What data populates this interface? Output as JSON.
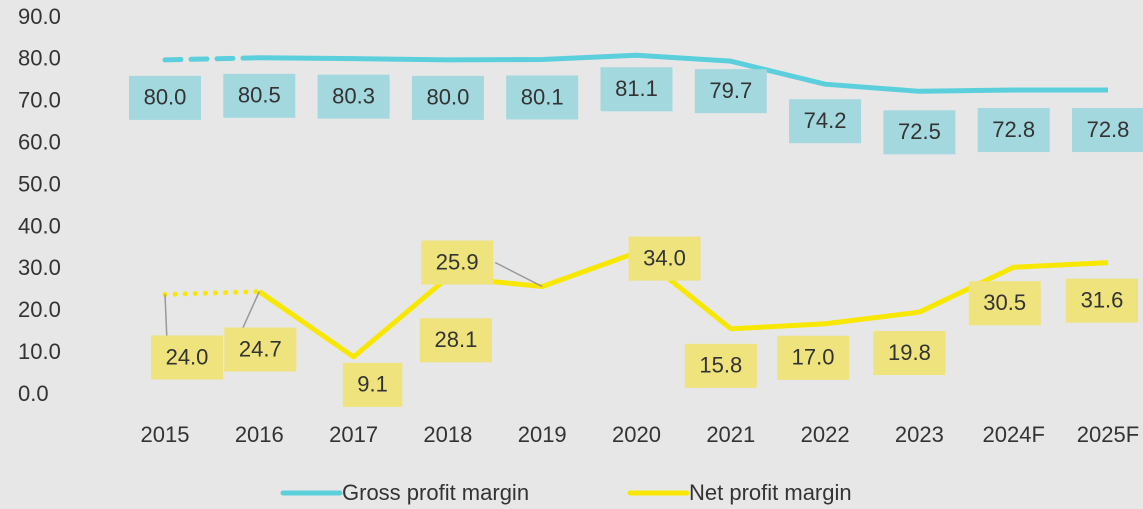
{
  "chart_data": {
    "type": "line",
    "categories": [
      "2015",
      "2016",
      "2017",
      "2018",
      "2019",
      "2020",
      "2021",
      "2022",
      "2023",
      "2024F",
      "2025F"
    ],
    "series": [
      {
        "name": "Gross profit margin",
        "color": "#5ccfdd",
        "label_color": "#a3d8df",
        "first_segment_style": "dashed",
        "values": [
          80.0,
          80.5,
          80.3,
          80.0,
          80.1,
          81.1,
          79.7,
          74.2,
          72.5,
          72.8,
          72.8
        ],
        "value_labels": [
          "80.0",
          "80.5",
          "80.3",
          "80.0",
          "80.1",
          "81.1",
          "79.7",
          "74.2",
          "72.5",
          "72.8",
          "72.8"
        ]
      },
      {
        "name": "Net profit margin",
        "color": "#f8e800",
        "label_color": "#eee37c",
        "first_segment_style": "dotted",
        "values": [
          24.0,
          24.7,
          9.1,
          28.1,
          25.9,
          34.0,
          15.8,
          17.0,
          19.8,
          30.5,
          31.6
        ],
        "value_labels": [
          "24.0",
          "24.7",
          "9.1",
          "28.1",
          "25.9",
          "34.0",
          "15.8",
          "17.0",
          "19.8",
          "30.5",
          "31.6"
        ]
      }
    ],
    "ylim": [
      0,
      90
    ],
    "yticks": [
      {
        "value": 0,
        "label": "0.0"
      },
      {
        "value": 10,
        "label": "10.0"
      },
      {
        "value": 20,
        "label": "20.0"
      },
      {
        "value": 30,
        "label": "30.0"
      },
      {
        "value": 40,
        "label": "40.0"
      },
      {
        "value": 50,
        "label": "50.0"
      },
      {
        "value": 60,
        "label": "60.0"
      },
      {
        "value": 70,
        "label": "70.0"
      },
      {
        "value": 80,
        "label": "80.0"
      },
      {
        "value": 90,
        "label": "90.0"
      }
    ],
    "legend": "bottom"
  }
}
